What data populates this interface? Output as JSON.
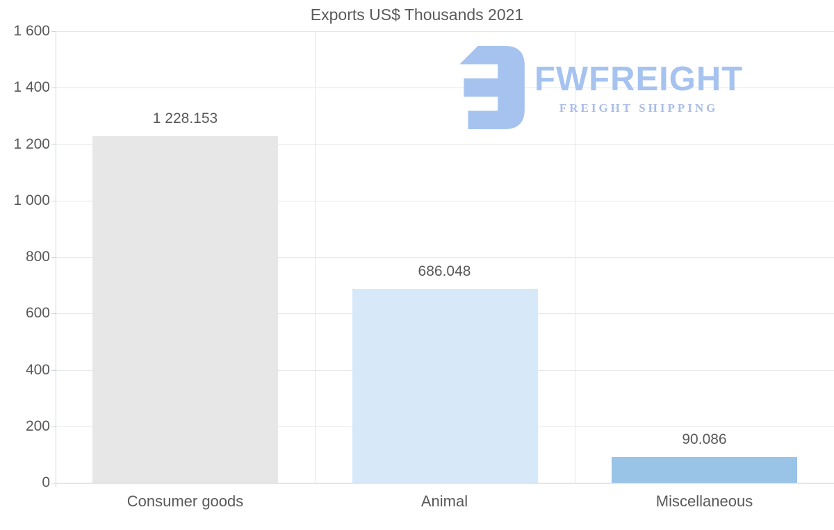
{
  "title": "Exports US$ Thousands 2021",
  "logo": {
    "name": "FWFREIGHT",
    "tagline": "FREIGHT SHIPPING",
    "color": "#a6c3f0"
  },
  "chart_data": {
    "type": "bar",
    "title": "Exports US$ Thousands 2021",
    "categories": [
      "Consumer goods",
      "Animal",
      "Miscellaneous"
    ],
    "values": [
      1228.153,
      686.048,
      90.086
    ],
    "value_labels": [
      "1 228.153",
      "686.048",
      "90.086"
    ],
    "bar_colors": [
      "#e7e7e7",
      "#d7e8f9",
      "#9ac3e8"
    ],
    "xlabel": "",
    "ylabel": "",
    "ylim": [
      0,
      1600
    ],
    "ytick_interval": 200,
    "ytick_labels": [
      "0",
      "200",
      "400",
      "600",
      "800",
      "1 000",
      "1 200",
      "1 400",
      "1 600"
    ],
    "grid": true,
    "legend_position": "none",
    "colors": {
      "label_text": "#595959",
      "gridline": "#e6e6e6",
      "axis": "#ccd6dd",
      "zero_line": "#c6c6c6",
      "background": "#ffffff"
    }
  }
}
